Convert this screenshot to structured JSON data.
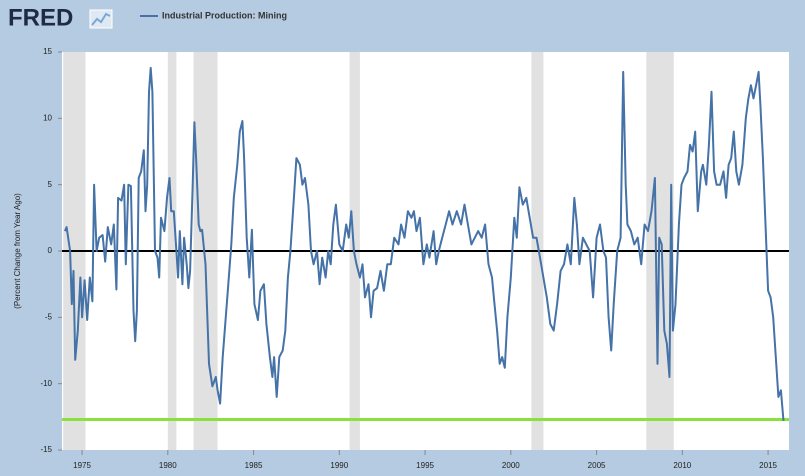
{
  "logo": "FRED",
  "chart_data": {
    "type": "line",
    "y_label": "(Percent Change from Year Ago)",
    "x": [
      1974.0,
      1974.1,
      1974.3,
      1974.4,
      1974.5,
      1974.6,
      1974.75,
      1974.9,
      1975.0,
      1975.15,
      1975.3,
      1975.45,
      1975.6,
      1975.7,
      1975.85,
      1976.0,
      1976.2,
      1976.35,
      1976.5,
      1976.7,
      1976.85,
      1977.0,
      1977.1,
      1977.3,
      1977.45,
      1977.55,
      1977.7,
      1977.85,
      1978.0,
      1978.1,
      1978.2,
      1978.3,
      1978.45,
      1978.6,
      1978.7,
      1978.8,
      1978.9,
      1979.0,
      1979.1,
      1979.25,
      1979.4,
      1979.5,
      1979.6,
      1979.8,
      1979.95,
      1980.1,
      1980.2,
      1980.35,
      1980.5,
      1980.6,
      1980.7,
      1980.85,
      1980.95,
      1981.1,
      1981.2,
      1981.3,
      1981.45,
      1981.55,
      1981.65,
      1981.8,
      1981.9,
      1982.0,
      1982.2,
      1982.4,
      1982.6,
      1982.8,
      1982.9,
      1983.05,
      1983.2,
      1983.5,
      1983.7,
      1983.85,
      1984.05,
      1984.2,
      1984.35,
      1984.45,
      1984.6,
      1984.75,
      1984.9,
      1985.05,
      1985.25,
      1985.4,
      1985.6,
      1985.75,
      1985.95,
      1986.1,
      1986.2,
      1986.35,
      1986.5,
      1986.7,
      1986.85,
      1987.0,
      1987.15,
      1987.35,
      1987.5,
      1987.7,
      1987.85,
      1988.0,
      1988.2,
      1988.35,
      1988.5,
      1988.7,
      1988.85,
      1989.0,
      1989.2,
      1989.35,
      1989.5,
      1989.65,
      1989.8,
      1990.0,
      1990.2,
      1990.4,
      1990.55,
      1990.7,
      1990.85,
      1991.0,
      1991.2,
      1991.35,
      1991.5,
      1991.7,
      1991.85,
      1992.0,
      1992.2,
      1992.4,
      1992.6,
      1992.8,
      1993.0,
      1993.2,
      1993.45,
      1993.6,
      1993.8,
      1994.0,
      1994.2,
      1994.35,
      1994.5,
      1994.7,
      1994.9,
      1995.1,
      1995.25,
      1995.5,
      1995.65,
      1995.8,
      1996.0,
      1996.2,
      1996.4,
      1996.6,
      1996.85,
      1997.1,
      1997.3,
      1997.5,
      1997.7,
      1997.9,
      1998.1,
      1998.3,
      1998.5,
      1998.7,
      1998.9,
      1999.05,
      1999.2,
      1999.35,
      1999.5,
      1999.65,
      1999.8,
      2000.0,
      2000.2,
      2000.35,
      2000.5,
      2000.7,
      2000.9,
      2001.1,
      2001.3,
      2001.5,
      2001.7,
      2001.9,
      2002.1,
      2002.3,
      2002.5,
      2002.7,
      2002.9,
      2003.1,
      2003.3,
      2003.5,
      2003.7,
      2003.85,
      2004.0,
      2004.2,
      2004.4,
      2004.6,
      2004.8,
      2005.0,
      2005.2,
      2005.4,
      2005.55,
      2005.7,
      2005.85,
      2006.0,
      2006.2,
      2006.4,
      2006.55,
      2006.7,
      2006.8,
      2007.0,
      2007.2,
      2007.4,
      2007.6,
      2007.8,
      2008.0,
      2008.2,
      2008.4,
      2008.55,
      2008.65,
      2008.8,
      2008.95,
      2009.1,
      2009.25,
      2009.35,
      2009.45,
      2009.6,
      2009.8,
      2009.95,
      2010.1,
      2010.3,
      2010.45,
      2010.6,
      2010.75,
      2010.9,
      2011.1,
      2011.2,
      2011.4,
      2011.55,
      2011.7,
      2011.85,
      2012.0,
      2012.2,
      2012.4,
      2012.55,
      2012.7,
      2012.85,
      2013.0,
      2013.15,
      2013.3,
      2013.5,
      2013.7,
      2013.85,
      2014.0,
      2014.15,
      2014.3,
      2014.45,
      2014.55,
      2014.7,
      2014.85,
      2015.0,
      2015.15,
      2015.3,
      2015.45,
      2015.6,
      2015.75,
      2015.9
    ],
    "series": [
      {
        "name": "Industrial Production: Mining",
        "color": "#4572a7",
        "values": [
          1.5,
          1.8,
          0,
          -4,
          -1.5,
          -8.2,
          -6,
          -2,
          -5,
          -2.2,
          -5.2,
          -2,
          -3.8,
          5,
          0,
          1,
          1.2,
          -0.8,
          1.8,
          0.5,
          2,
          -2.9,
          4,
          3.8,
          5,
          -1,
          5,
          4.9,
          -4.5,
          -6.8,
          -4.5,
          5.5,
          6,
          7.6,
          3,
          5,
          12,
          13.8,
          12,
          0,
          -0.5,
          -2,
          2.5,
          1.5,
          4,
          5.5,
          3,
          3,
          0,
          -2,
          1.5,
          -2.5,
          1,
          -1,
          -2.8,
          -1.5,
          5,
          9.7,
          7,
          2,
          1.5,
          1.6,
          -1,
          -8.5,
          -10.2,
          -9.5,
          -10.5,
          -11.5,
          -8,
          -3,
          0.5,
          4,
          6.5,
          9,
          9.8,
          7,
          1,
          -2,
          1.6,
          -4,
          -5.2,
          -3,
          -2.5,
          -5.5,
          -8,
          -9.5,
          -8,
          -11,
          -8,
          -7.5,
          -6,
          -2,
          0,
          4,
          7,
          6.5,
          5,
          5.5,
          3.5,
          0,
          -1,
          0,
          -2.5,
          -0.5,
          -2,
          0,
          -1,
          2,
          3.5,
          0.5,
          0,
          2,
          1,
          3,
          0,
          -1,
          -2,
          -1,
          -3.5,
          -2.5,
          -5,
          -3,
          -2.8,
          -1.5,
          -3,
          -1,
          -1,
          1,
          0.5,
          2,
          1,
          3,
          2.5,
          3,
          1.5,
          2.5,
          -1,
          0.5,
          -0.5,
          1.5,
          -1,
          0,
          1,
          2,
          3,
          2,
          3,
          2,
          3.5,
          2,
          0.5,
          1,
          1.5,
          1,
          2,
          -1,
          -2,
          -4,
          -6,
          -8.5,
          -8,
          -8.8,
          -5,
          -2,
          2.5,
          1,
          4.8,
          3.5,
          4,
          2.5,
          1,
          1,
          -0.5,
          -2,
          -3.5,
          -5.5,
          -6,
          -4,
          -1.5,
          -1,
          0.5,
          -1,
          4,
          2,
          -1,
          1,
          0.5,
          0,
          -3.5,
          1,
          2,
          0,
          -0.5,
          -5,
          -7.5,
          -4,
          0,
          1,
          13.5,
          5,
          2,
          1.5,
          0.5,
          1,
          -1,
          2,
          1.5,
          3,
          5.5,
          -8.5,
          1,
          0.5,
          -6,
          -7,
          -9.5,
          5,
          -6,
          -4,
          2,
          5,
          5.5,
          6,
          8,
          7.5,
          9,
          3,
          6,
          6.5,
          5,
          8,
          12,
          6,
          5,
          5,
          6,
          4,
          6.5,
          7,
          9,
          6,
          5,
          6.5,
          10,
          11.5,
          12.5,
          11.5,
          12.5,
          13.5,
          11,
          7,
          2,
          -3,
          -3.5,
          -5,
          -8,
          -11,
          -10.5,
          -12.8
        ]
      }
    ],
    "xlim": [
      1973.83,
      2016.22
    ],
    "xticks": [
      1975,
      1980,
      1985,
      1990,
      1995,
      2000,
      2005,
      2010,
      2015
    ],
    "ylim": [
      -15,
      15
    ],
    "yticks": [
      -15,
      -10,
      -5,
      0,
      5,
      10,
      15
    ],
    "recessions": [
      [
        1973.9,
        1975.2
      ],
      [
        1980.0,
        1980.5
      ],
      [
        1981.5,
        1982.9
      ],
      [
        1990.6,
        1991.2
      ],
      [
        2001.2,
        2001.9
      ],
      [
        2007.9,
        2009.5
      ]
    ],
    "recession_color": "#e1e1e1",
    "zero_line": true,
    "reference_line": {
      "value": -12.7,
      "color": "#88e23a"
    }
  }
}
